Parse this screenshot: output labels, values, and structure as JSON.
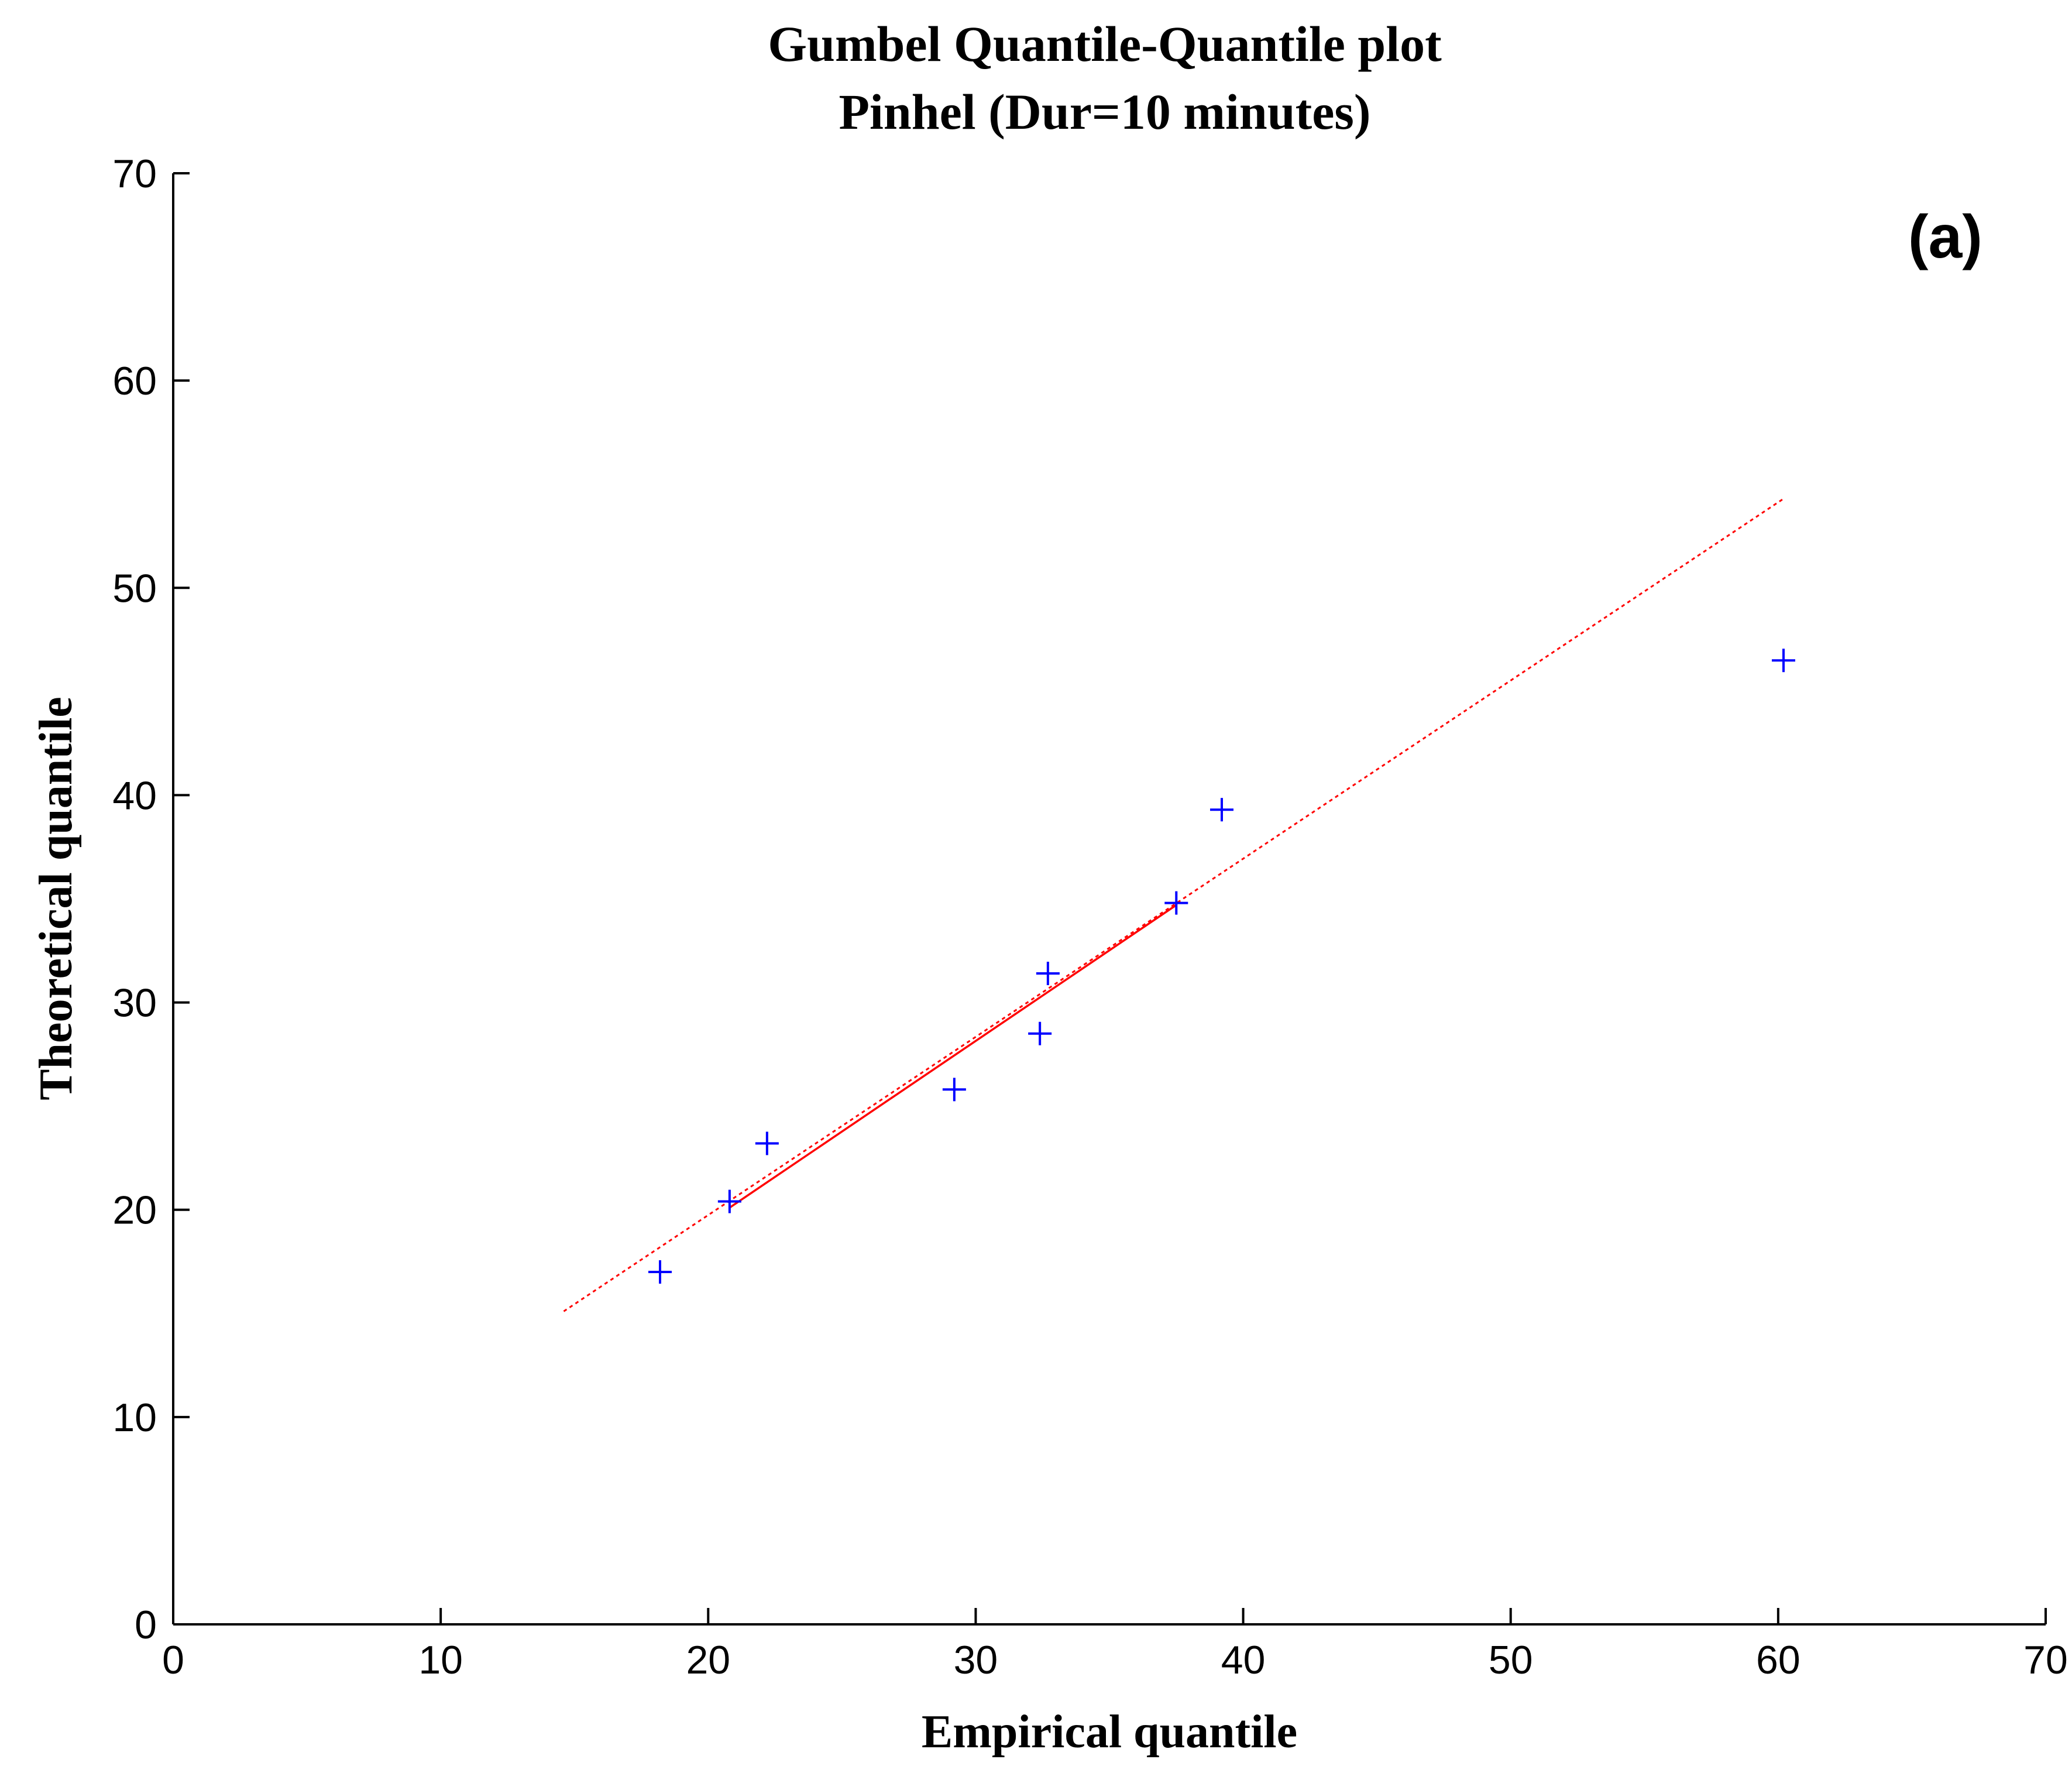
{
  "chart_data": {
    "type": "scatter",
    "title": "Gumbel Quantile-Quantile plot",
    "subtitle": "Pinhel (Dur=10 minutes)",
    "xlabel": "Empirical quantile",
    "ylabel": "Theoretical quantile",
    "panel_label": "(a)",
    "xlim": [
      0,
      70
    ],
    "ylim": [
      0,
      70
    ],
    "xticks": [
      0,
      10,
      20,
      30,
      40,
      50,
      60,
      70
    ],
    "yticks": [
      0,
      10,
      20,
      30,
      40,
      50,
      60,
      70
    ],
    "grid": false,
    "box": false,
    "marker": "+",
    "marker_color": "#0000ff",
    "line_color": "#ff0000",
    "points": [
      {
        "x": 18.2,
        "y": 17.0
      },
      {
        "x": 20.8,
        "y": 20.4
      },
      {
        "x": 22.2,
        "y": 23.2
      },
      {
        "x": 29.2,
        "y": 25.8
      },
      {
        "x": 32.4,
        "y": 28.5
      },
      {
        "x": 32.7,
        "y": 31.4
      },
      {
        "x": 37.5,
        "y": 34.8
      },
      {
        "x": 39.2,
        "y": 39.3
      },
      {
        "x": 60.2,
        "y": 46.5
      }
    ],
    "fit_line": {
      "solid": {
        "x": [
          20.8,
          37.5
        ],
        "y": [
          20.1,
          34.7
        ]
      },
      "dashed": {
        "x": [
          14.6,
          60.2
        ],
        "y": [
          15.1,
          54.3
        ]
      }
    }
  }
}
